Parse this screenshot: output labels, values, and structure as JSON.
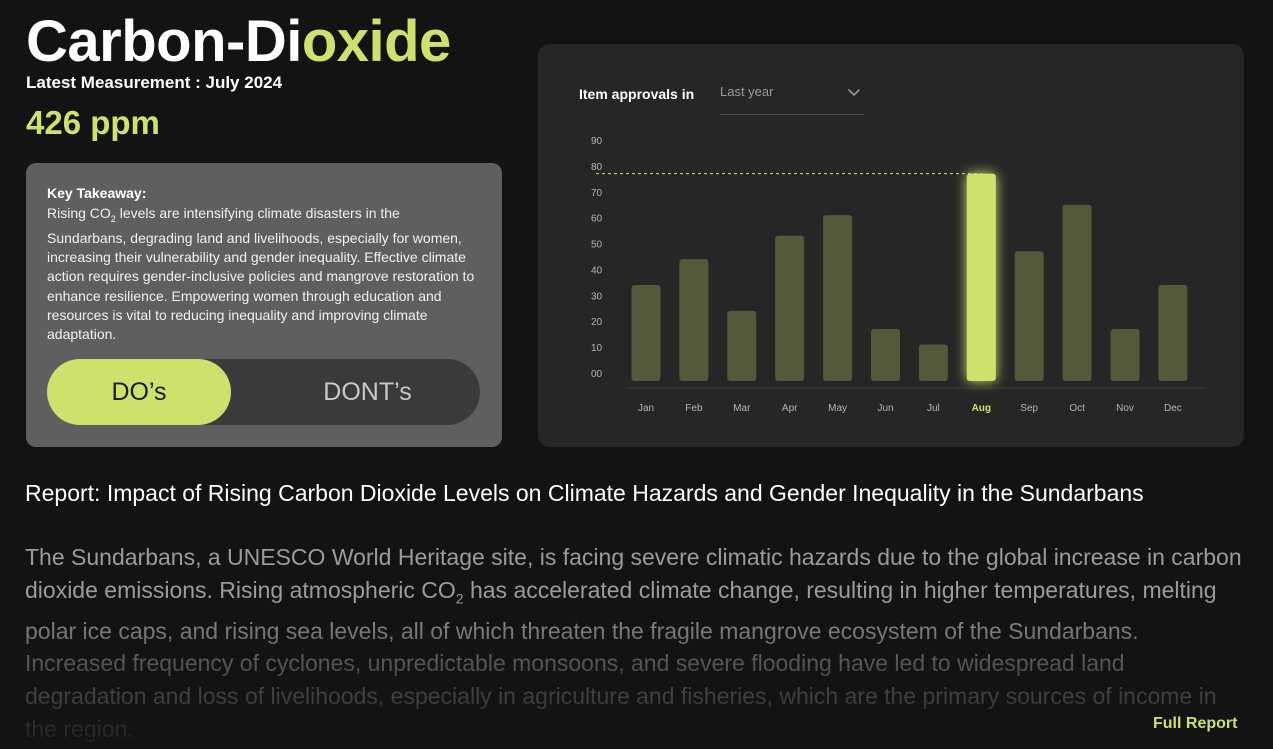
{
  "header": {
    "title_part1": "Carbon-Di",
    "title_part2": "oxide",
    "latest_measurement": "Latest Measurement : July 2024",
    "ppm": "426 ppm"
  },
  "takeaway": {
    "heading": "Key Takeaway:",
    "body_before_sub": "Rising CO",
    "body_sub": "2",
    "body_after_sub": " levels are intensifying climate disasters in the Sundarbans, degrading land and livelihoods, especially for women, increasing their vulnerability and gender inequality. Effective climate action requires gender-inclusive policies and mangrove restoration to enhance resilience. Empowering women through education and resources is vital to reducing inequality and improving climate adaptation.",
    "toggle": {
      "active_label": "DO’s",
      "inactive_label": "DONT’s"
    }
  },
  "chart_panel": {
    "label": "Item approvals in",
    "period_value": "Last year",
    "chevron_icon": "chevron-down-icon"
  },
  "chart_data": {
    "type": "bar",
    "title": "Item approvals in",
    "categories": [
      "Jan",
      "Feb",
      "Mar",
      "Apr",
      "May",
      "Jun",
      "Jul",
      "Aug",
      "Sep",
      "Oct",
      "Nov",
      "Dec"
    ],
    "values": [
      34,
      44,
      24,
      53,
      61,
      17,
      11,
      77,
      47,
      65,
      17,
      34
    ],
    "y_ticks": [
      "00",
      "10",
      "20",
      "30",
      "40",
      "50",
      "60",
      "70",
      "80",
      "90"
    ],
    "ylim": [
      0,
      90
    ],
    "highlight": "Aug",
    "highlight_color": "#cfe06c",
    "bar_color": "#535a3b",
    "reference_line_value": 77,
    "grid": false,
    "xlabel": "",
    "ylabel": ""
  },
  "report": {
    "title": "Report: Impact of Rising Carbon Dioxide Levels on Climate Hazards and Gender Inequality in the Sundarbans",
    "body_before_sub": "The Sundarbans, a UNESCO World Heritage site, is facing severe climatic hazards due to the global increase in carbon dioxide emissions. Rising atmospheric CO",
    "body_sub": "2",
    "body_after_sub": " has accelerated climate change, resulting in higher temperatures, melting polar ice caps, and rising sea levels, all of which threaten the fragile mangrove ecosystem of the Sundarbans. Increased frequency of cyclones, unpredictable monsoons, and severe flooding have led to widespread land degradation and loss of livelihoods, especially in agriculture and fisheries, which are the primary sources of income in the region.",
    "link_label": "Full Report"
  },
  "colors": {
    "accent": "#cfe06c",
    "background": "#131313",
    "card": "#5f5f5f",
    "panel": "#262626"
  }
}
